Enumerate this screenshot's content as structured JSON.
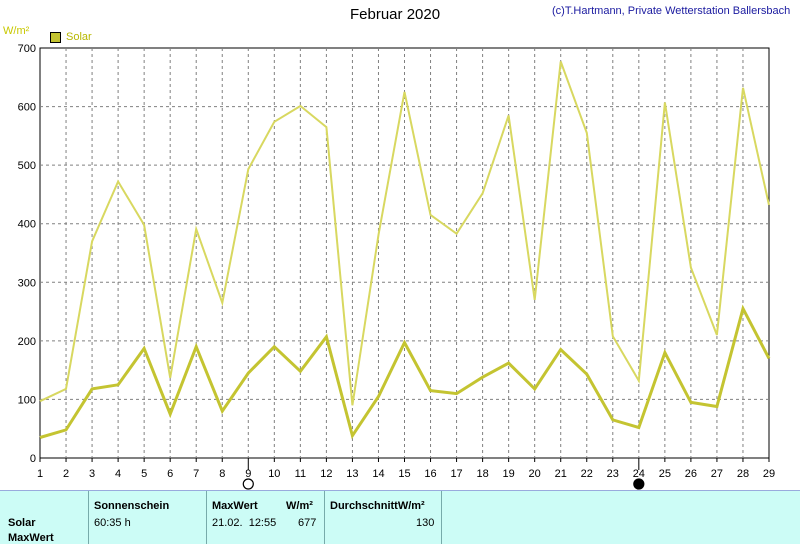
{
  "header": {
    "title": "Februar 2020",
    "copyright": "(c)T.Hartmann, Private Wetterstation Ballersbach",
    "unit": "W/m²",
    "legend_label": "Solar"
  },
  "colors": {
    "series_light": "#d8d860",
    "series_dark": "#c4c431",
    "grid": "#808080",
    "panel_bg": "#ccfcf6"
  },
  "chart_data": {
    "type": "line",
    "title": "Februar 2020",
    "ylabel": "W/m²",
    "xlabel": "",
    "ylim": [
      0,
      700
    ],
    "yticks": [
      0,
      100,
      200,
      300,
      400,
      500,
      600,
      700
    ],
    "x": [
      1,
      2,
      3,
      4,
      5,
      6,
      7,
      8,
      9,
      10,
      11,
      12,
      13,
      14,
      15,
      16,
      17,
      18,
      19,
      20,
      21,
      22,
      23,
      24,
      25,
      26,
      27,
      28,
      29
    ],
    "series": [
      {
        "name": "Solar MaxWert",
        "values": [
          97,
          118,
          370,
          472,
          398,
          137,
          391,
          265,
          493,
          574,
          601,
          565,
          90,
          381,
          625,
          415,
          383,
          452,
          585,
          270,
          677,
          555,
          208,
          132,
          607,
          325,
          210,
          632,
          432
        ]
      },
      {
        "name": "Solar",
        "values": [
          35,
          48,
          118,
          125,
          187,
          75,
          190,
          80,
          145,
          190,
          148,
          207,
          38,
          105,
          197,
          115,
          110,
          138,
          162,
          118,
          185,
          143,
          65,
          52,
          180,
          95,
          88,
          255,
          170
        ]
      }
    ],
    "grid": true,
    "legend": "top-left",
    "moon_markers": [
      {
        "day": 9,
        "phase": "full"
      },
      {
        "day": 24,
        "phase": "new"
      }
    ]
  },
  "panel": {
    "row_labels": [
      "Solar",
      "MaxWert"
    ],
    "sunshine_header": "Sonnenschein",
    "sunshine_value": "60:35 h",
    "max_header": "MaxWert",
    "max_unit": "W/m²",
    "max_datetime": "21.02.  12:55",
    "max_value": "677",
    "avg_header": "DurchschnittW/m²",
    "avg_value": "130"
  }
}
